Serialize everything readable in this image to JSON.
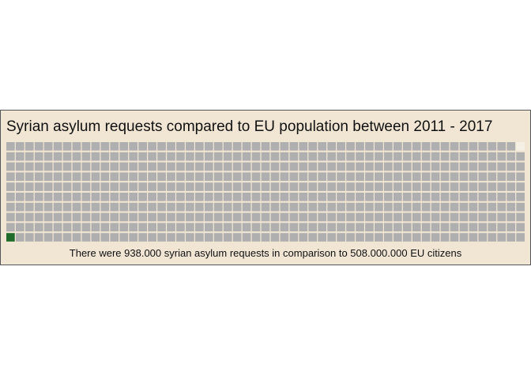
{
  "chart_data": {
    "type": "waffle",
    "title": "Syrian asylum requests compared to EU population between 2011 - 2017",
    "caption": "There were 938.000 syrian asylum requests in comparison to 508.000.000 EU citizens",
    "rows": 10,
    "columns": 55,
    "series": [
      {
        "name": "Syrian asylum requests",
        "squares": 1,
        "color": "#1e6b2a"
      },
      {
        "name": "EU citizens",
        "squares": 548,
        "color": "#afafaf"
      }
    ],
    "empty_squares": 1,
    "empty_color": "#f5efe4",
    "legend": "none"
  }
}
